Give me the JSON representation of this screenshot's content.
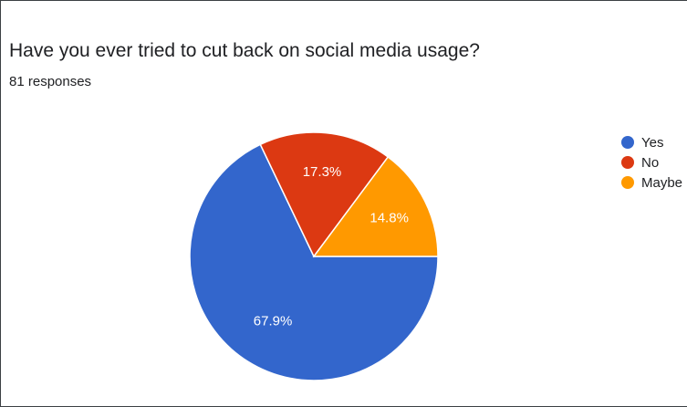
{
  "chart_data": {
    "type": "pie",
    "title": "Have you ever tried to cut back on social media usage?",
    "subtitle": "81 responses",
    "slices": [
      {
        "label": "Yes",
        "value": 67.9,
        "value_label": "67.9%",
        "color": "#3366cc"
      },
      {
        "label": "No",
        "value": 17.3,
        "value_label": "17.3%",
        "color": "#dc3912"
      },
      {
        "label": "Maybe",
        "value": 14.8,
        "value_label": "14.8%",
        "color": "#ff9900"
      }
    ],
    "legend_position": "right"
  }
}
